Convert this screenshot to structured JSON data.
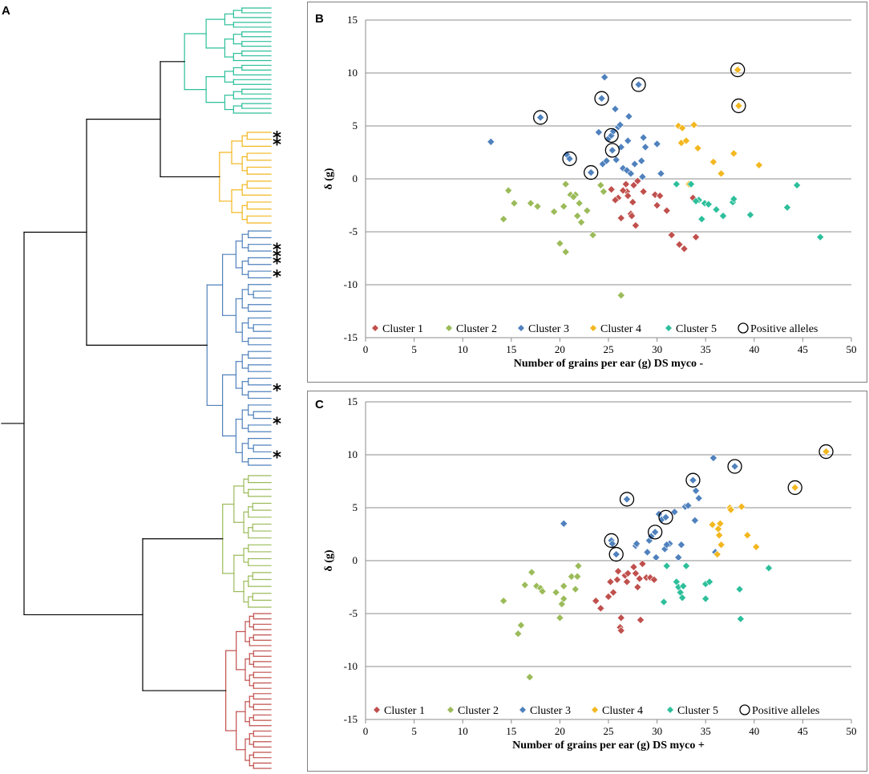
{
  "panels": {
    "a": "A",
    "b": "B",
    "c": "C"
  },
  "colors": {
    "Cluster 1": "#c0504d",
    "Cluster 2": "#9bbb59",
    "Cluster 3": "#4f81bd",
    "Cluster 4": "#f3b71f",
    "Cluster 5": "#2dbf9b",
    "root": "#000000",
    "grid": "#8c8c8c"
  },
  "dendrogram": {
    "title": "A",
    "marker_symbol": "*",
    "clusters": [
      {
        "name": "Cluster 5",
        "leaves": 23,
        "starred": []
      },
      {
        "name": "Cluster 4",
        "leaves": 14,
        "starred": [
          0,
          1
        ]
      },
      {
        "name": "Cluster 3",
        "leaves": 36,
        "starred": [
          2,
          3,
          4,
          6,
          23,
          28,
          33
        ]
      },
      {
        "name": "Cluster 2",
        "leaves": 20,
        "starred": []
      },
      {
        "name": "Cluster 1",
        "leaves": 30,
        "starred": []
      }
    ]
  },
  "chart_data": [
    {
      "panel": "B",
      "type": "scatter",
      "xlabel": "Number of grains per ear (g) DS myco -",
      "ylabel": "δ (g)",
      "xlim": [
        0,
        50
      ],
      "ylim": [
        -15,
        15
      ],
      "xticks": [
        0,
        5,
        10,
        15,
        20,
        25,
        30,
        35,
        40,
        45,
        50
      ],
      "yticks": [
        -15,
        -10,
        -5,
        0,
        5,
        10,
        15
      ],
      "grid": "horizontal",
      "legend": "bottom",
      "legend_labels": [
        "Cluster 1",
        "Cluster 2",
        "Cluster 3",
        "Cluster 4",
        "Cluster 5",
        "Positive alleles"
      ],
      "series": [
        {
          "name": "Cluster 1",
          "points": [
            [
              25.3,
              -1.0
            ],
            [
              26.0,
              -1.8
            ],
            [
              26.3,
              -3.7
            ],
            [
              26.8,
              -0.5
            ],
            [
              26.9,
              -1.2
            ],
            [
              27.0,
              -1.6
            ],
            [
              27.3,
              -3.3
            ],
            [
              27.4,
              -3.5
            ],
            [
              27.5,
              -2.2
            ],
            [
              27.6,
              -0.6
            ],
            [
              27.8,
              -4.4
            ],
            [
              28.0,
              -0.2
            ],
            [
              28.6,
              -1.2
            ],
            [
              29.8,
              -1.5
            ],
            [
              30.0,
              -2.5
            ],
            [
              30.3,
              -1.6
            ],
            [
              31.0,
              -3.0
            ],
            [
              31.5,
              -5.3
            ],
            [
              32.3,
              -6.2
            ],
            [
              32.8,
              -6.6
            ],
            [
              33.7,
              -1.8
            ],
            [
              34.0,
              -5.5
            ],
            [
              26.5,
              -1.1
            ],
            [
              25.7,
              -2.0
            ]
          ]
        },
        {
          "name": "Cluster 2",
          "points": [
            [
              14.2,
              -3.8
            ],
            [
              14.7,
              -1.1
            ],
            [
              15.3,
              -2.3
            ],
            [
              17.0,
              -2.3
            ],
            [
              17.7,
              -2.6
            ],
            [
              19.4,
              -3.1
            ],
            [
              20.0,
              -6.1
            ],
            [
              20.4,
              -2.6
            ],
            [
              20.6,
              -0.5
            ],
            [
              20.6,
              -6.9
            ],
            [
              21.1,
              -1.5
            ],
            [
              21.6,
              -1.5
            ],
            [
              21.8,
              -3.5
            ],
            [
              22.0,
              -2.3
            ],
            [
              22.2,
              -4.1
            ],
            [
              22.8,
              -3.0
            ],
            [
              23.4,
              -5.3
            ],
            [
              24.2,
              -0.6
            ],
            [
              24.5,
              -1.2
            ],
            [
              26.3,
              -11.0
            ],
            [
              21.4,
              -1.7
            ]
          ]
        },
        {
          "name": "Cluster 3",
          "points": [
            [
              12.9,
              3.5
            ],
            [
              18.0,
              5.8
            ],
            [
              20.7,
              2.3
            ],
            [
              21.0,
              1.9
            ],
            [
              23.2,
              0.6
            ],
            [
              24.0,
              4.4
            ],
            [
              24.3,
              7.6
            ],
            [
              24.4,
              1.4
            ],
            [
              24.6,
              9.6
            ],
            [
              24.8,
              1.7
            ],
            [
              25.0,
              3.8
            ],
            [
              25.3,
              4.1
            ],
            [
              25.4,
              2.7
            ],
            [
              25.5,
              4.5
            ],
            [
              25.7,
              6.6
            ],
            [
              25.8,
              1.8
            ],
            [
              26.0,
              4.9
            ],
            [
              26.2,
              5.1
            ],
            [
              26.3,
              3.0
            ],
            [
              26.5,
              1.0
            ],
            [
              26.9,
              0.8
            ],
            [
              27.0,
              3.6
            ],
            [
              27.1,
              5.9
            ],
            [
              27.3,
              0.5
            ],
            [
              27.7,
              1.4
            ],
            [
              28.1,
              8.9
            ],
            [
              28.4,
              1.7
            ],
            [
              28.5,
              0.2
            ],
            [
              28.6,
              3.9
            ],
            [
              28.8,
              3.0
            ],
            [
              30.0,
              3.3
            ],
            [
              30.4,
              0.5
            ]
          ]
        },
        {
          "name": "Cluster 4",
          "points": [
            [
              32.2,
              5.0
            ],
            [
              32.5,
              3.4
            ],
            [
              32.6,
              4.8
            ],
            [
              33.0,
              3.6
            ],
            [
              33.3,
              -0.5
            ],
            [
              33.8,
              5.1
            ],
            [
              34.2,
              2.9
            ],
            [
              35.8,
              1.6
            ],
            [
              36.6,
              0.5
            ],
            [
              37.9,
              2.4
            ],
            [
              38.3,
              10.3
            ],
            [
              38.4,
              6.9
            ],
            [
              40.5,
              1.3
            ]
          ]
        },
        {
          "name": "Cluster 5",
          "points": [
            [
              32.0,
              -0.5
            ],
            [
              33.5,
              -0.5
            ],
            [
              34.3,
              -2.0
            ],
            [
              34.6,
              -3.8
            ],
            [
              34.9,
              -2.3
            ],
            [
              35.3,
              -2.4
            ],
            [
              36.1,
              -2.9
            ],
            [
              36.8,
              -3.5
            ],
            [
              37.8,
              -2.2
            ],
            [
              37.9,
              -1.9
            ],
            [
              39.6,
              -3.4
            ],
            [
              43.4,
              -2.7
            ],
            [
              44.4,
              -0.6
            ],
            [
              46.8,
              -5.5
            ],
            [
              34.0,
              -2.1
            ]
          ]
        }
      ],
      "positive_alleles": [
        [
          18.0,
          5.8
        ],
        [
          21.0,
          1.9
        ],
        [
          23.2,
          0.6
        ],
        [
          24.3,
          7.6
        ],
        [
          25.3,
          4.1
        ],
        [
          25.4,
          2.7
        ],
        [
          28.1,
          8.9
        ],
        [
          38.3,
          10.3
        ],
        [
          38.4,
          6.9
        ]
      ]
    },
    {
      "panel": "C",
      "type": "scatter",
      "xlabel": "Number of grains per ear  (g) DS myco +",
      "ylabel": "δ (g)",
      "xlim": [
        0,
        50
      ],
      "ylim": [
        -15,
        15
      ],
      "xticks": [
        0,
        5,
        10,
        15,
        20,
        25,
        30,
        35,
        40,
        45,
        50
      ],
      "yticks": [
        -15,
        -10,
        -5,
        0,
        5,
        10,
        15
      ],
      "grid": "horizontal",
      "legend": "bottom",
      "legend_labels": [
        "Cluster 1",
        "Cluster 2",
        "Cluster 3",
        "Cluster 4",
        "Cluster 5",
        "Positive alleles"
      ],
      "series": [
        {
          "name": "Cluster 1",
          "points": [
            [
              23.7,
              -3.8
            ],
            [
              24.2,
              -4.5
            ],
            [
              25.0,
              -3.4
            ],
            [
              25.2,
              -2.0
            ],
            [
              25.5,
              -3.0
            ],
            [
              25.9,
              -1.8
            ],
            [
              26.0,
              -1.0
            ],
            [
              26.2,
              -6.3
            ],
            [
              26.3,
              -5.4
            ],
            [
              26.3,
              -6.6
            ],
            [
              26.7,
              -1.4
            ],
            [
              26.9,
              -2.0
            ],
            [
              27.0,
              -1.2
            ],
            [
              27.6,
              -0.6
            ],
            [
              27.8,
              -1.2
            ],
            [
              28.0,
              -2.5
            ],
            [
              28.2,
              -1.7
            ],
            [
              28.3,
              -5.6
            ],
            [
              28.5,
              -0.3
            ],
            [
              28.9,
              -1.6
            ],
            [
              29.3,
              -1.6
            ],
            [
              29.7,
              -1.8
            ]
          ]
        },
        {
          "name": "Cluster 2",
          "points": [
            [
              14.2,
              -3.8
            ],
            [
              15.7,
              -6.9
            ],
            [
              16.0,
              -6.1
            ],
            [
              16.4,
              -2.3
            ],
            [
              16.9,
              -11.0
            ],
            [
              17.1,
              -1.1
            ],
            [
              17.6,
              -2.4
            ],
            [
              18.0,
              -2.6
            ],
            [
              18.2,
              -2.9
            ],
            [
              19.6,
              -3.0
            ],
            [
              20.0,
              -5.4
            ],
            [
              20.2,
              -4.1
            ],
            [
              20.4,
              -3.6
            ],
            [
              20.4,
              -2.4
            ],
            [
              21.2,
              -1.5
            ],
            [
              21.8,
              -1.5
            ],
            [
              21.9,
              -0.5
            ],
            [
              21.6,
              -2.7
            ]
          ]
        },
        {
          "name": "Cluster 3",
          "points": [
            [
              20.4,
              3.5
            ],
            [
              25.3,
              1.9
            ],
            [
              25.4,
              1.6
            ],
            [
              25.8,
              0.6
            ],
            [
              26.9,
              5.8
            ],
            [
              27.8,
              1.4
            ],
            [
              27.9,
              1.6
            ],
            [
              29.0,
              0.8
            ],
            [
              29.2,
              1.9
            ],
            [
              29.4,
              2.3
            ],
            [
              29.8,
              2.7
            ],
            [
              29.9,
              0.3
            ],
            [
              30.2,
              4.4
            ],
            [
              30.5,
              3.9
            ],
            [
              30.9,
              4.1
            ],
            [
              31.3,
              1.6
            ],
            [
              31.8,
              4.6
            ],
            [
              32.5,
              1.5
            ],
            [
              32.9,
              5.1
            ],
            [
              33.2,
              5.2
            ],
            [
              33.7,
              7.6
            ],
            [
              33.9,
              3.8
            ],
            [
              34.0,
              6.6
            ],
            [
              34.3,
              5.9
            ],
            [
              35.8,
              9.7
            ],
            [
              36.0,
              0.8
            ],
            [
              38.0,
              8.9
            ],
            [
              30.8,
              1.1
            ],
            [
              32.2,
              0.3
            ],
            [
              31.0,
              1.5
            ]
          ]
        },
        {
          "name": "Cluster 4",
          "points": [
            [
              35.7,
              3.4
            ],
            [
              36.2,
              0.6
            ],
            [
              36.3,
              3.0
            ],
            [
              36.4,
              2.4
            ],
            [
              36.5,
              3.5
            ],
            [
              36.6,
              1.5
            ],
            [
              37.5,
              5.0
            ],
            [
              37.6,
              4.8
            ],
            [
              38.7,
              5.1
            ],
            [
              39.3,
              2.4
            ],
            [
              40.2,
              1.3
            ],
            [
              44.2,
              6.9
            ],
            [
              47.4,
              10.3
            ]
          ]
        },
        {
          "name": "Cluster 5",
          "points": [
            [
              30.7,
              -3.9
            ],
            [
              31.0,
              -0.5
            ],
            [
              32.0,
              -2.0
            ],
            [
              32.2,
              -2.5
            ],
            [
              32.4,
              -3.0
            ],
            [
              32.6,
              -3.5
            ],
            [
              32.7,
              -2.4
            ],
            [
              33.0,
              -0.5
            ],
            [
              35.0,
              -3.6
            ],
            [
              35.0,
              -2.2
            ],
            [
              35.4,
              -2.0
            ],
            [
              38.5,
              -2.7
            ],
            [
              38.6,
              -5.5
            ],
            [
              41.5,
              -0.7
            ]
          ]
        }
      ],
      "positive_alleles": [
        [
          25.3,
          1.9
        ],
        [
          25.8,
          0.6
        ],
        [
          26.9,
          5.8
        ],
        [
          29.8,
          2.7
        ],
        [
          30.9,
          4.1
        ],
        [
          33.7,
          7.6
        ],
        [
          38.0,
          8.9
        ],
        [
          44.2,
          6.9
        ],
        [
          47.4,
          10.3
        ]
      ]
    }
  ]
}
